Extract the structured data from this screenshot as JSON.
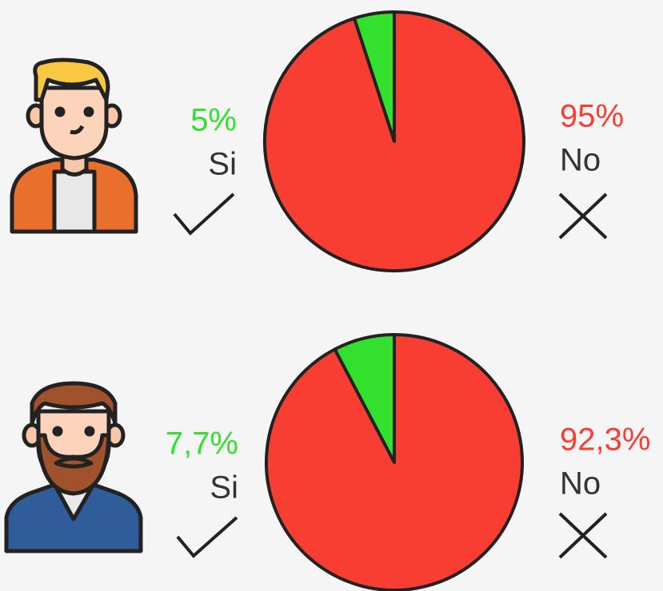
{
  "chart_data": [
    {
      "type": "pie",
      "categories": [
        "Si",
        "No"
      ],
      "values": [
        5,
        95
      ],
      "value_labels": [
        "5%",
        "95%"
      ],
      "colors": [
        "#33e02e",
        "#f83e33"
      ]
    },
    {
      "type": "pie",
      "categories": [
        "Si",
        "No"
      ],
      "values": [
        7.7,
        92.3
      ],
      "value_labels": [
        "7,7%",
        "92,3%"
      ],
      "colors": [
        "#33e02e",
        "#f83e33"
      ]
    }
  ]
}
